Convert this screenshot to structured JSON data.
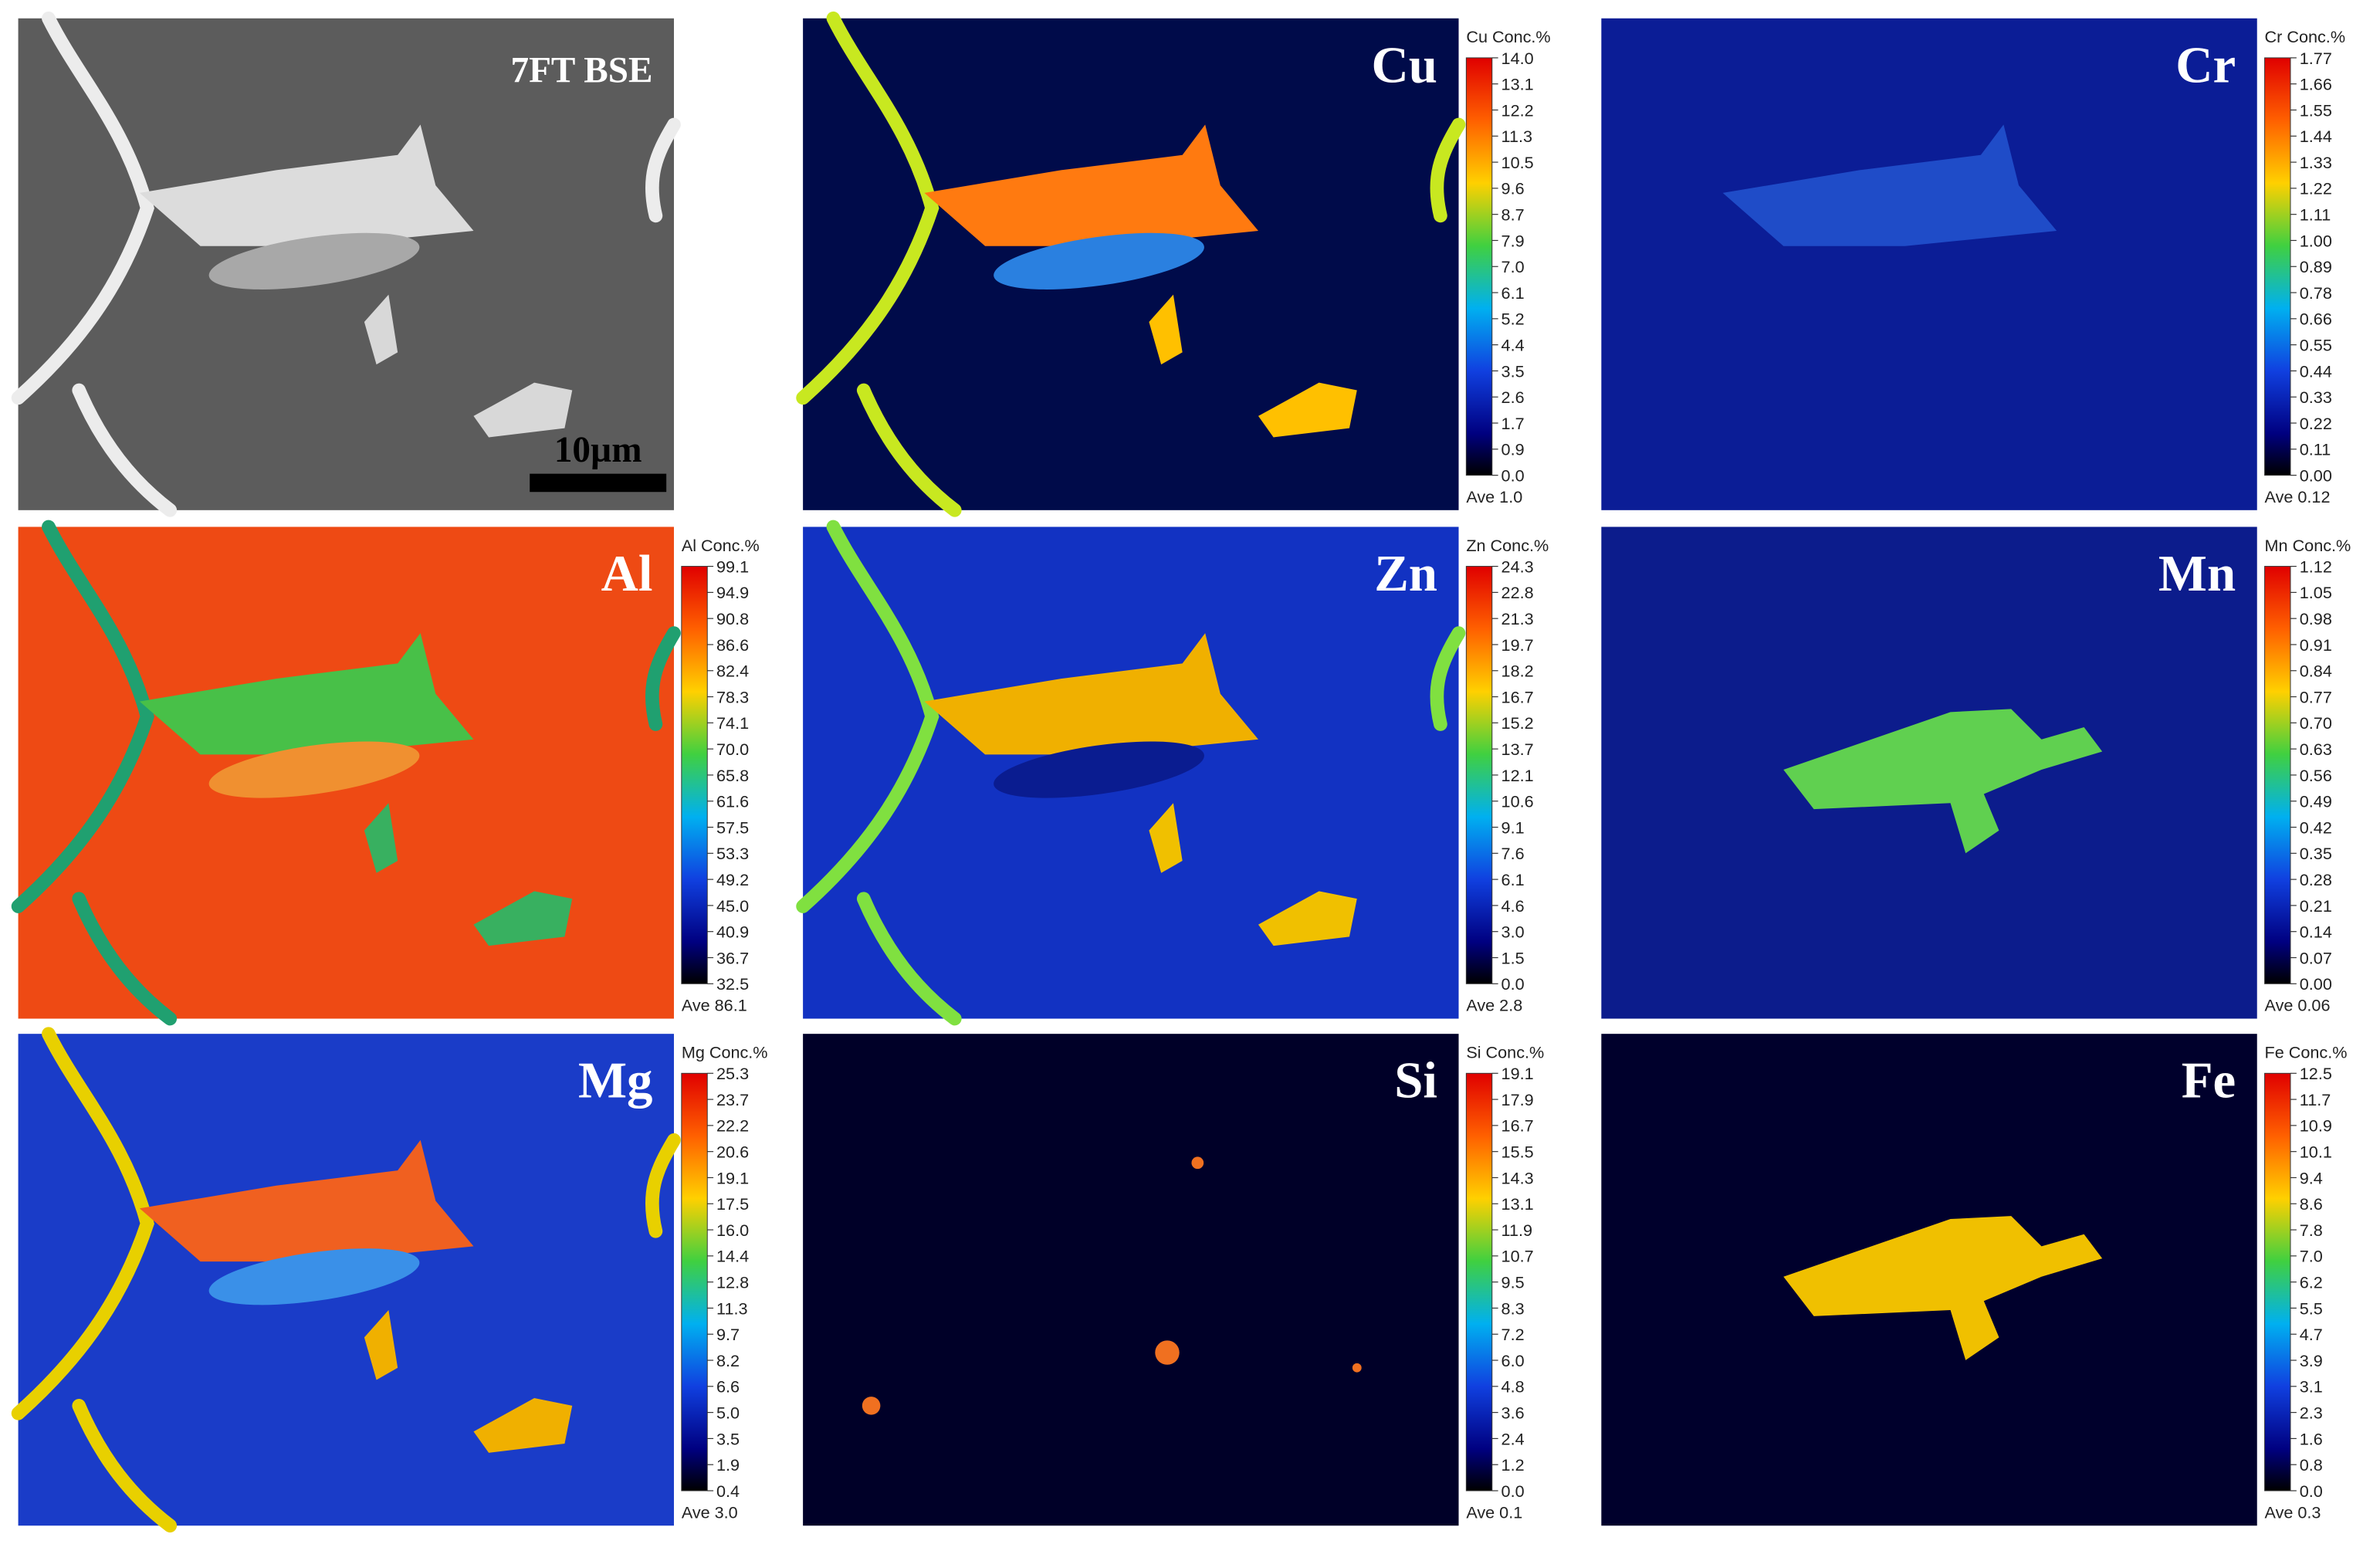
{
  "panels": [
    {
      "label": "7FT BSE",
      "scale_bar": "10µm"
    },
    {
      "label": "Cu",
      "colorbar": {
        "title": "Cu Conc.%",
        "ticks": [
          "14.0",
          "13.1",
          "12.2",
          "11.3",
          "10.5",
          "9.6",
          "8.7",
          "7.9",
          "7.0",
          "6.1",
          "5.2",
          "4.4",
          "3.5",
          "2.6",
          "1.7",
          "0.9",
          "0.0"
        ],
        "average": "Ave 1.0"
      }
    },
    {
      "label": "Cr",
      "colorbar": {
        "title": "Cr Conc.%",
        "ticks": [
          "1.77",
          "1.66",
          "1.55",
          "1.44",
          "1.33",
          "1.22",
          "1.11",
          "1.00",
          "0.89",
          "0.78",
          "0.66",
          "0.55",
          "0.44",
          "0.33",
          "0.22",
          "0.11",
          "0.00"
        ],
        "average": "Ave 0.12"
      }
    },
    {
      "label": "Al",
      "colorbar": {
        "title": "Al Conc.%",
        "ticks": [
          "99.1",
          "94.9",
          "90.8",
          "86.6",
          "82.4",
          "78.3",
          "74.1",
          "70.0",
          "65.8",
          "61.6",
          "57.5",
          "53.3",
          "49.2",
          "45.0",
          "40.9",
          "36.7",
          "32.5"
        ],
        "average": "Ave 86.1"
      }
    },
    {
      "label": "Zn",
      "colorbar": {
        "title": "Zn Conc.%",
        "ticks": [
          "24.3",
          "22.8",
          "21.3",
          "19.7",
          "18.2",
          "16.7",
          "15.2",
          "13.7",
          "12.1",
          "10.6",
          "9.1",
          "7.6",
          "6.1",
          "4.6",
          "3.0",
          "1.5",
          "0.0"
        ],
        "average": "Ave 2.8"
      }
    },
    {
      "label": "Mn",
      "colorbar": {
        "title": "Mn Conc.%",
        "ticks": [
          "1.12",
          "1.05",
          "0.98",
          "0.91",
          "0.84",
          "0.77",
          "0.70",
          "0.63",
          "0.56",
          "0.49",
          "0.42",
          "0.35",
          "0.28",
          "0.21",
          "0.14",
          "0.07",
          "0.00"
        ],
        "average": "Ave 0.06"
      }
    },
    {
      "label": "Mg",
      "colorbar": {
        "title": "Mg Conc.%",
        "ticks": [
          "25.3",
          "23.7",
          "22.2",
          "20.6",
          "19.1",
          "17.5",
          "16.0",
          "14.4",
          "12.8",
          "11.3",
          "9.7",
          "8.2",
          "6.6",
          "5.0",
          "3.5",
          "1.9",
          "0.4"
        ],
        "average": "Ave 3.0"
      }
    },
    {
      "label": "Si",
      "colorbar": {
        "title": "Si Conc.%",
        "ticks": [
          "19.1",
          "17.9",
          "16.7",
          "15.5",
          "14.3",
          "13.1",
          "11.9",
          "10.7",
          "9.5",
          "8.3",
          "7.2",
          "6.0",
          "4.8",
          "3.6",
          "2.4",
          "1.2",
          "0.0"
        ],
        "average": "Ave 0.1"
      }
    },
    {
      "label": "Fe",
      "colorbar": {
        "title": "Fe Conc.%",
        "ticks": [
          "12.5",
          "11.7",
          "10.9",
          "10.1",
          "9.4",
          "8.6",
          "7.8",
          "7.0",
          "6.2",
          "5.5",
          "4.7",
          "3.9",
          "3.1",
          "2.3",
          "1.6",
          "0.8",
          "0.0"
        ],
        "average": "Ave 0.3"
      }
    }
  ]
}
